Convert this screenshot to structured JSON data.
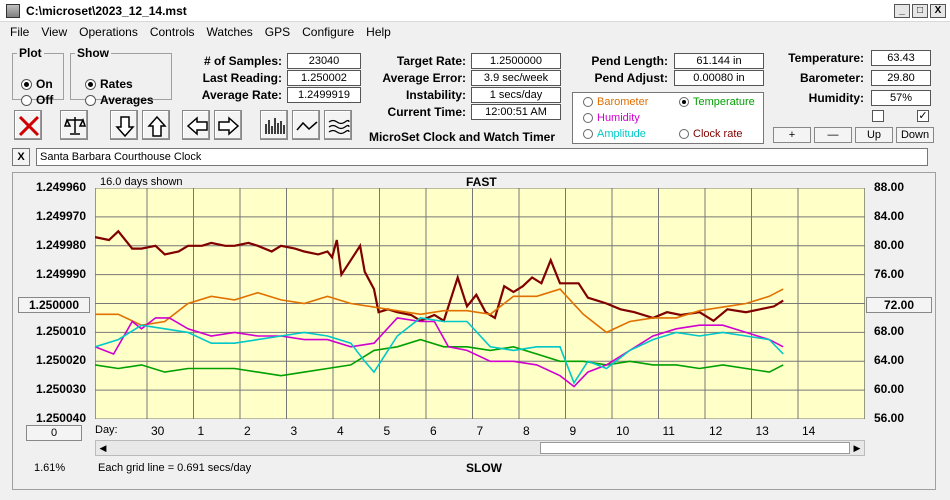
{
  "window": {
    "title": "C:\\microset\\2023_12_14.mst",
    "minimize": "_",
    "maximize": "□",
    "close": "X"
  },
  "menu": [
    "File",
    "View",
    "Operations",
    "Controls",
    "Watches",
    "GPS",
    "Configure",
    "Help"
  ],
  "plot_group": {
    "title": "Plot",
    "on": "On",
    "off": "Off",
    "selected": "On"
  },
  "show_group": {
    "title": "Show",
    "rates": "Rates",
    "averages": "Averages",
    "selected": "Rates"
  },
  "stats": {
    "samples_label": "# of Samples:",
    "samples": "23040",
    "last_reading_label": "Last Reading:",
    "last_reading": "1.250002",
    "average_rate_label": "Average Rate:",
    "average_rate": "1.2499919",
    "target_rate_label": "Target Rate:",
    "target_rate": "1.2500000",
    "average_error_label": "Average Error:",
    "average_error": "3.9 sec/week",
    "instability_label": "Instability:",
    "instability": "1 secs/day",
    "current_time_label": "Current Time:",
    "current_time": "12:00:51 AM",
    "pend_length_label": "Pend Length:",
    "pend_length": "61.144 in",
    "pend_adjust_label": "Pend Adjust:",
    "pend_adjust": "0.00080 in",
    "temperature_label": "Temperature:",
    "temperature": "63.43",
    "barometer_label": "Barometer:",
    "barometer": "29.80",
    "humidity_label": "Humidity:",
    "humidity": "57%"
  },
  "app_name": "MicroSet Clock and Watch Timer",
  "overlay_options": {
    "barometer": "Barometer",
    "temperature": "Temperature",
    "humidity": "Humidity",
    "amplitude": "Amplitude",
    "clock_rate": "Clock rate",
    "selected": "Temperature",
    "colors": {
      "barometer": "#e07000",
      "temperature": "#00a000",
      "humidity": "#d000d0",
      "amplitude": "#00c8c8",
      "clock_rate": "#800000"
    }
  },
  "step_buttons": {
    "plus": "+",
    "minus": "—",
    "up": "Up",
    "down": "Down"
  },
  "checkboxes": {
    "left_checked": false,
    "right_checked": true,
    "check_mark": "✓"
  },
  "clock_name": "Santa Barbara Courthouse Clock",
  "clear_name": "X",
  "chart_data": {
    "type": "line",
    "days_shown": "16.0 days shown",
    "top_label": "FAST",
    "bottom_label": "SLOW",
    "grid_note": "Each grid line = 0.691 secs/day",
    "left_axis_ticks": [
      "1.249960",
      "1.249970",
      "1.249980",
      "1.249990",
      "1.250000",
      "1.250010",
      "1.250020",
      "1.250030",
      "1.250040"
    ],
    "left_axis_range": [
      1.24996,
      1.25004
    ],
    "left_axis_center_button": "1.250000",
    "right_axis_ticks": [
      "88.00",
      "84.00",
      "80.00",
      "76.00",
      "72.00",
      "68.00",
      "64.00",
      "60.00",
      "56.00"
    ],
    "right_axis_range": [
      56,
      88
    ],
    "right_axis_center_button": "72.00",
    "zero_button": "0",
    "day_axis_label": "Day:",
    "days": [
      "30",
      "1",
      "2",
      "3",
      "4",
      "5",
      "6",
      "7",
      "8",
      "9",
      "10",
      "11",
      "12",
      "13",
      "14"
    ],
    "percent": "1.61%",
    "series": [
      {
        "key": "clock_rate",
        "color": "#800000",
        "x": [
          0,
          0.3,
          0.5,
          0.8,
          1,
          1.3,
          1.5,
          1.8,
          2,
          2.3,
          2.5,
          2.8,
          3,
          3.3,
          3.5,
          3.8,
          4,
          4.3,
          4.5,
          4.8,
          5,
          5.1,
          5.2,
          5.3,
          5.5,
          5.7,
          5.8,
          6,
          6.1,
          6.3,
          6.5,
          6.8,
          7,
          7.3,
          7.5,
          7.8,
          8,
          8.2,
          8.4,
          8.6,
          8.8,
          9,
          9.2,
          9.4,
          9.6,
          9.8,
          10,
          10.2,
          10.4,
          10.6,
          10.8,
          11,
          11.3,
          11.6,
          12,
          12.3,
          12.6,
          13,
          13.3,
          13.6,
          14,
          14.3,
          14.6,
          14.8
        ],
        "values": [
          1.249977,
          1.249978,
          1.249975,
          1.249981,
          1.249981,
          1.24998,
          1.249983,
          1.249982,
          1.24998,
          1.24998,
          1.249979,
          1.24998,
          1.24998,
          1.249979,
          1.24998,
          1.249982,
          1.24998,
          1.249981,
          1.249982,
          1.249983,
          1.249982,
          1.249984,
          1.249978,
          1.24999,
          1.249985,
          1.24998,
          1.249989,
          1.249995,
          1.250003,
          1.250002,
          1.250003,
          1.250004,
          1.250006,
          1.250004,
          1.250006,
          1.249991,
          1.250001,
          1.249997,
          1.250003,
          1.250005,
          1.249994,
          1.249996,
          1.249994,
          1.249991,
          1.249993,
          1.249985,
          1.249993,
          1.249993,
          1.249993,
          1.249998,
          1.249999,
          1.25,
          1.250002,
          1.250003,
          1.250005,
          1.250003,
          1.250004,
          1.250003,
          1.250006,
          1.250002,
          1.250003,
          1.250002,
          1.250001,
          1.249999
        ]
      },
      {
        "key": "barometer",
        "color": "#e07000",
        "x": [
          0,
          0.5,
          1,
          1.5,
          2,
          2.5,
          3,
          3.5,
          4,
          4.5,
          5,
          5.5,
          6,
          6.5,
          7,
          7.5,
          8,
          8.5,
          9,
          9.5,
          10,
          10.5,
          11,
          11.5,
          12,
          12.5,
          13,
          13.5,
          14,
          14.5,
          14.8
        ],
        "values": [
          70.5,
          70.5,
          69,
          69.5,
          72,
          73,
          72.5,
          73.5,
          72.5,
          72,
          73,
          72,
          71.5,
          71,
          70.5,
          71,
          71,
          70.5,
          73,
          73,
          74,
          70.5,
          68,
          69.5,
          70,
          70,
          71,
          71.5,
          72,
          73,
          74
        ]
      },
      {
        "key": "temperature",
        "color": "#00a000",
        "x": [
          0,
          0.5,
          1,
          1.5,
          2,
          2.5,
          3,
          3.5,
          4,
          4.5,
          5,
          5.5,
          6,
          6.5,
          7,
          7.5,
          8,
          8.5,
          9,
          9.5,
          10,
          10.5,
          11,
          11.5,
          12,
          12.5,
          13,
          13.5,
          14,
          14.5,
          14.8
        ],
        "values": [
          63.5,
          63,
          63.5,
          62.5,
          63,
          63,
          63,
          62.5,
          62,
          62.5,
          63,
          63.5,
          65.5,
          66,
          67,
          66,
          66,
          65.5,
          66,
          65,
          64,
          64,
          63.5,
          64,
          63.5,
          63.5,
          63,
          63.5,
          63,
          62.5,
          63.5
        ]
      },
      {
        "key": "humidity",
        "color": "#d000d0",
        "x": [
          0,
          0.4,
          0.8,
          1,
          1.3,
          1.6,
          2,
          2.5,
          3,
          3.5,
          4,
          4.5,
          5,
          5.5,
          6,
          6.5,
          7,
          7.3,
          7.6,
          8,
          8.5,
          9,
          9.5,
          10,
          10.3,
          10.6,
          11,
          11.5,
          12,
          12.5,
          13,
          13.5,
          14,
          14.5,
          14.8
        ],
        "values": [
          66,
          65,
          69.5,
          68.5,
          70,
          70,
          68.5,
          67.5,
          68,
          67.5,
          67.5,
          67,
          67,
          66,
          66.5,
          70,
          69.5,
          69.5,
          66,
          65.5,
          64,
          64,
          63.5,
          62,
          60.5,
          62.5,
          63.5,
          65.5,
          67.5,
          68.5,
          69,
          69,
          68,
          67,
          66
        ]
      },
      {
        "key": "amplitude",
        "color": "#00c8c8",
        "x": [
          0,
          0.5,
          1,
          1.5,
          2,
          2.5,
          3,
          3.5,
          4,
          4.5,
          5,
          5.5,
          5.8,
          6,
          6.5,
          7,
          7.5,
          8,
          8.5,
          9,
          9.5,
          10,
          10.3,
          10.6,
          11,
          11.5,
          12,
          12.5,
          13,
          13.5,
          14,
          14.5,
          14.8
        ],
        "values": [
          66,
          67,
          69,
          68.5,
          68,
          66.5,
          66.5,
          67,
          67.5,
          68,
          67.5,
          66.5,
          64,
          62.5,
          67.5,
          70,
          69.5,
          69.5,
          66,
          65.5,
          66,
          66,
          61,
          64,
          63,
          65.5,
          67,
          68,
          67.5,
          68,
          67.5,
          67,
          65
        ]
      }
    ]
  }
}
